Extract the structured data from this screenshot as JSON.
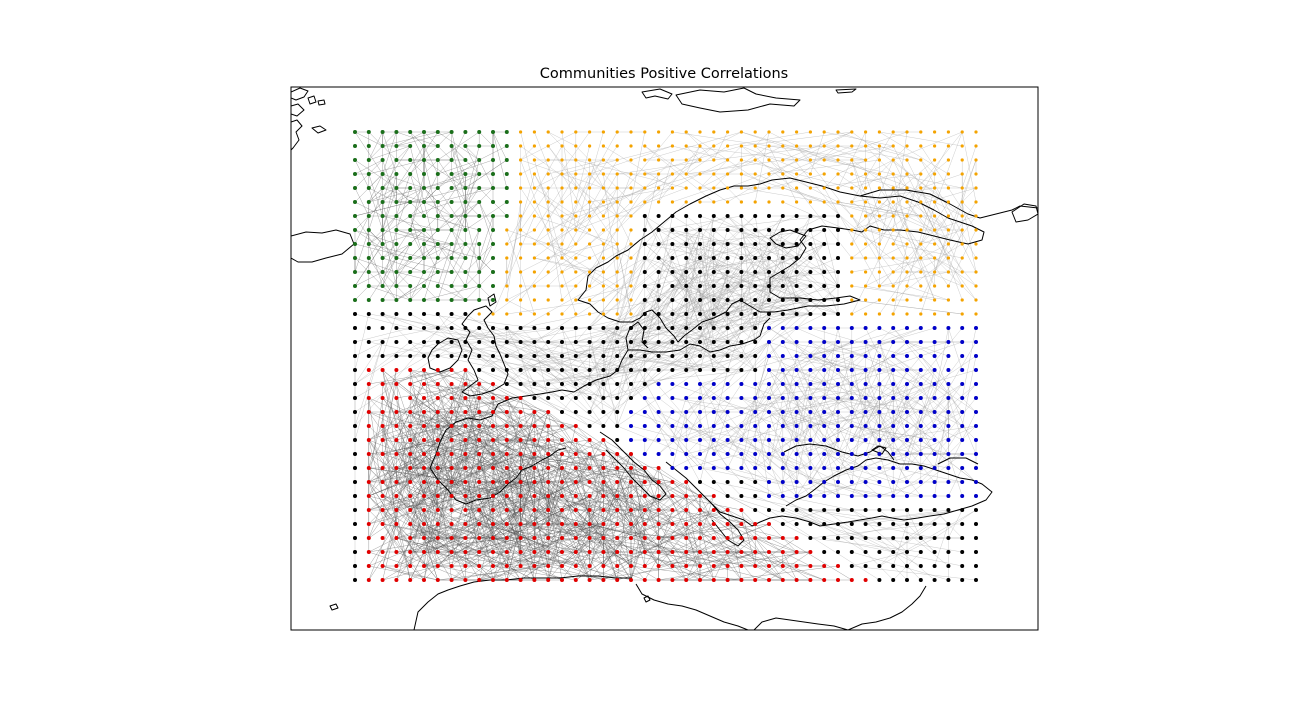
{
  "figure": {
    "title": "Communities Positive Correlations"
  },
  "map": {
    "region": "Europe and North Atlantic",
    "node_grid": {
      "columns": 46,
      "rows": 34
    },
    "edge_color": "#9a9a9a",
    "communities": [
      {
        "id": "green",
        "color": "#1a6e1a"
      },
      {
        "id": "orange",
        "color": "#f4a300"
      },
      {
        "id": "black",
        "color": "#000000"
      },
      {
        "id": "blue",
        "color": "#0000c8"
      },
      {
        "id": "red",
        "color": "#e00000"
      }
    ]
  }
}
